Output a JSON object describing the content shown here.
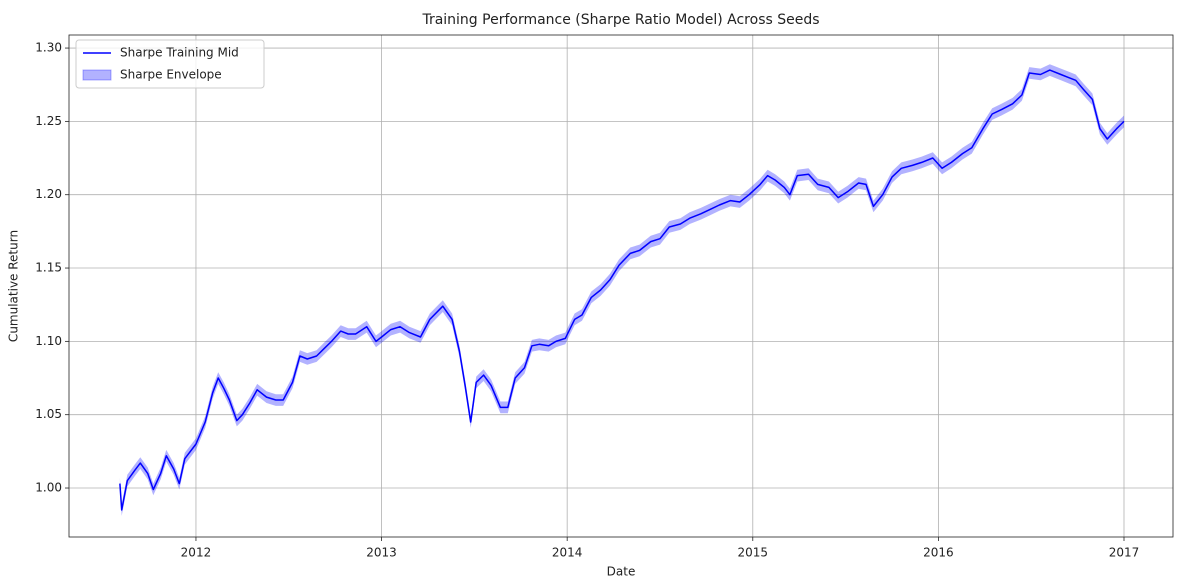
{
  "chart_data": {
    "type": "line",
    "title": "Training Performance (Sharpe Ratio Model) Across Seeds",
    "x_label": "Date",
    "y_label": "Cumulative Return",
    "grid": true,
    "legend": "upper left",
    "xlim": [
      2011.316,
      2017.264
    ],
    "ylim": [
      0.9666,
      1.3089
    ],
    "xticks": [
      2012,
      2013,
      2014,
      2015,
      2016,
      2017
    ],
    "yticks": [
      {
        "value": 1.0,
        "label": "1.00"
      },
      {
        "value": 1.05,
        "label": "1.05"
      },
      {
        "value": 1.1,
        "label": "1.10"
      },
      {
        "value": 1.15,
        "label": "1.15"
      },
      {
        "value": 1.2,
        "label": "1.20"
      },
      {
        "value": 1.25,
        "label": "1.25"
      },
      {
        "value": 1.3,
        "label": "1.30"
      }
    ],
    "x": [
      2011.59,
      2011.6,
      2011.63,
      2011.67,
      2011.7,
      2011.74,
      2011.77,
      2011.81,
      2011.84,
      2011.88,
      2011.91,
      2011.94,
      2012.0,
      2012.05,
      2012.09,
      2012.12,
      2012.15,
      2012.18,
      2012.22,
      2012.25,
      2012.29,
      2012.33,
      2012.38,
      2012.43,
      2012.47,
      2012.52,
      2012.56,
      2012.6,
      2012.65,
      2012.69,
      2012.73,
      2012.78,
      2012.82,
      2012.86,
      2012.92,
      2012.97,
      2013.0,
      2013.05,
      2013.1,
      2013.15,
      2013.21,
      2013.26,
      2013.33,
      2013.38,
      2013.42,
      2013.45,
      2013.48,
      2013.51,
      2013.55,
      2013.59,
      2013.64,
      2013.68,
      2013.72,
      2013.77,
      2013.81,
      2013.85,
      2013.9,
      2013.94,
      2013.99,
      2014.04,
      2014.08,
      2014.13,
      2014.18,
      2014.23,
      2014.28,
      2014.34,
      2014.39,
      2014.45,
      2014.5,
      2014.55,
      2014.61,
      2014.66,
      2014.72,
      2014.77,
      2014.82,
      2014.88,
      2014.93,
      2014.98,
      2015.04,
      2015.08,
      2015.12,
      2015.17,
      2015.2,
      2015.24,
      2015.3,
      2015.35,
      2015.41,
      2015.46,
      2015.51,
      2015.57,
      2015.61,
      2015.65,
      2015.7,
      2015.75,
      2015.8,
      2015.86,
      2015.91,
      2015.97,
      2016.02,
      2016.07,
      2016.13,
      2016.18,
      2016.24,
      2016.29,
      2016.34,
      2016.4,
      2016.45,
      2016.49,
      2016.55,
      2016.6,
      2016.66,
      2016.7,
      2016.74,
      2016.78,
      2016.83,
      2016.87,
      2016.91,
      2016.96,
      2017.0
    ],
    "series": [
      {
        "name": "Sharpe Training Mid",
        "color": "#0000ff",
        "values": [
          1.003,
          0.985,
          1.005,
          1.012,
          1.017,
          1.01,
          0.999,
          1.01,
          1.022,
          1.013,
          1.003,
          1.02,
          1.03,
          1.045,
          1.065,
          1.075,
          1.068,
          1.06,
          1.046,
          1.05,
          1.058,
          1.067,
          1.062,
          1.06,
          1.06,
          1.072,
          1.09,
          1.088,
          1.09,
          1.095,
          1.1,
          1.107,
          1.105,
          1.105,
          1.11,
          1.1,
          1.103,
          1.108,
          1.11,
          1.106,
          1.103,
          1.115,
          1.124,
          1.115,
          1.093,
          1.07,
          1.045,
          1.072,
          1.077,
          1.07,
          1.055,
          1.055,
          1.075,
          1.082,
          1.097,
          1.098,
          1.097,
          1.1,
          1.102,
          1.115,
          1.118,
          1.13,
          1.135,
          1.142,
          1.152,
          1.16,
          1.162,
          1.168,
          1.17,
          1.178,
          1.18,
          1.184,
          1.187,
          1.19,
          1.193,
          1.196,
          1.195,
          1.2,
          1.207,
          1.213,
          1.21,
          1.205,
          1.2,
          1.213,
          1.214,
          1.207,
          1.205,
          1.198,
          1.202,
          1.208,
          1.207,
          1.192,
          1.2,
          1.212,
          1.218,
          1.22,
          1.222,
          1.225,
          1.218,
          1.222,
          1.228,
          1.232,
          1.245,
          1.255,
          1.258,
          1.262,
          1.268,
          1.283,
          1.282,
          1.285,
          1.282,
          1.28,
          1.278,
          1.272,
          1.265,
          1.245,
          1.238,
          1.245,
          1.25
        ]
      }
    ],
    "bands": [
      {
        "name": "Sharpe Envelope",
        "color": "#0000ff",
        "lower": [
          0.999,
          0.981,
          1.001,
          1.008,
          1.013,
          1.006,
          0.995,
          1.006,
          1.018,
          1.009,
          0.999,
          1.016,
          1.026,
          1.041,
          1.061,
          1.071,
          1.064,
          1.056,
          1.042,
          1.046,
          1.054,
          1.063,
          1.058,
          1.056,
          1.056,
          1.068,
          1.086,
          1.084,
          1.086,
          1.091,
          1.096,
          1.103,
          1.101,
          1.101,
          1.106,
          1.096,
          1.099,
          1.104,
          1.106,
          1.102,
          1.099,
          1.111,
          1.12,
          1.111,
          1.089,
          1.066,
          1.041,
          1.068,
          1.073,
          1.066,
          1.051,
          1.051,
          1.071,
          1.078,
          1.093,
          1.094,
          1.093,
          1.096,
          1.098,
          1.111,
          1.114,
          1.126,
          1.131,
          1.138,
          1.148,
          1.156,
          1.158,
          1.164,
          1.166,
          1.174,
          1.176,
          1.18,
          1.183,
          1.186,
          1.189,
          1.192,
          1.191,
          1.196,
          1.203,
          1.209,
          1.206,
          1.201,
          1.196,
          1.209,
          1.21,
          1.203,
          1.201,
          1.194,
          1.198,
          1.204,
          1.203,
          1.188,
          1.196,
          1.208,
          1.214,
          1.216,
          1.218,
          1.221,
          1.214,
          1.218,
          1.224,
          1.228,
          1.241,
          1.251,
          1.254,
          1.258,
          1.264,
          1.279,
          1.278,
          1.281,
          1.278,
          1.276,
          1.274,
          1.268,
          1.261,
          1.241,
          1.234,
          1.241,
          1.246
        ],
        "upper": [
          1.007,
          0.989,
          1.009,
          1.016,
          1.021,
          1.014,
          1.003,
          1.014,
          1.026,
          1.017,
          1.007,
          1.024,
          1.034,
          1.049,
          1.069,
          1.079,
          1.072,
          1.064,
          1.05,
          1.054,
          1.062,
          1.071,
          1.066,
          1.064,
          1.064,
          1.076,
          1.094,
          1.092,
          1.094,
          1.099,
          1.104,
          1.111,
          1.109,
          1.109,
          1.114,
          1.104,
          1.107,
          1.112,
          1.114,
          1.11,
          1.107,
          1.119,
          1.128,
          1.119,
          1.097,
          1.074,
          1.049,
          1.076,
          1.081,
          1.074,
          1.059,
          1.059,
          1.079,
          1.086,
          1.101,
          1.102,
          1.101,
          1.104,
          1.106,
          1.119,
          1.122,
          1.134,
          1.139,
          1.146,
          1.156,
          1.164,
          1.166,
          1.172,
          1.174,
          1.182,
          1.184,
          1.188,
          1.191,
          1.194,
          1.197,
          1.2,
          1.199,
          1.204,
          1.211,
          1.217,
          1.214,
          1.209,
          1.204,
          1.217,
          1.218,
          1.211,
          1.209,
          1.202,
          1.206,
          1.212,
          1.211,
          1.196,
          1.204,
          1.216,
          1.222,
          1.224,
          1.226,
          1.229,
          1.222,
          1.226,
          1.232,
          1.236,
          1.249,
          1.259,
          1.262,
          1.266,
          1.272,
          1.287,
          1.286,
          1.289,
          1.286,
          1.284,
          1.282,
          1.276,
          1.269,
          1.249,
          1.242,
          1.249,
          1.254
        ]
      }
    ]
  }
}
